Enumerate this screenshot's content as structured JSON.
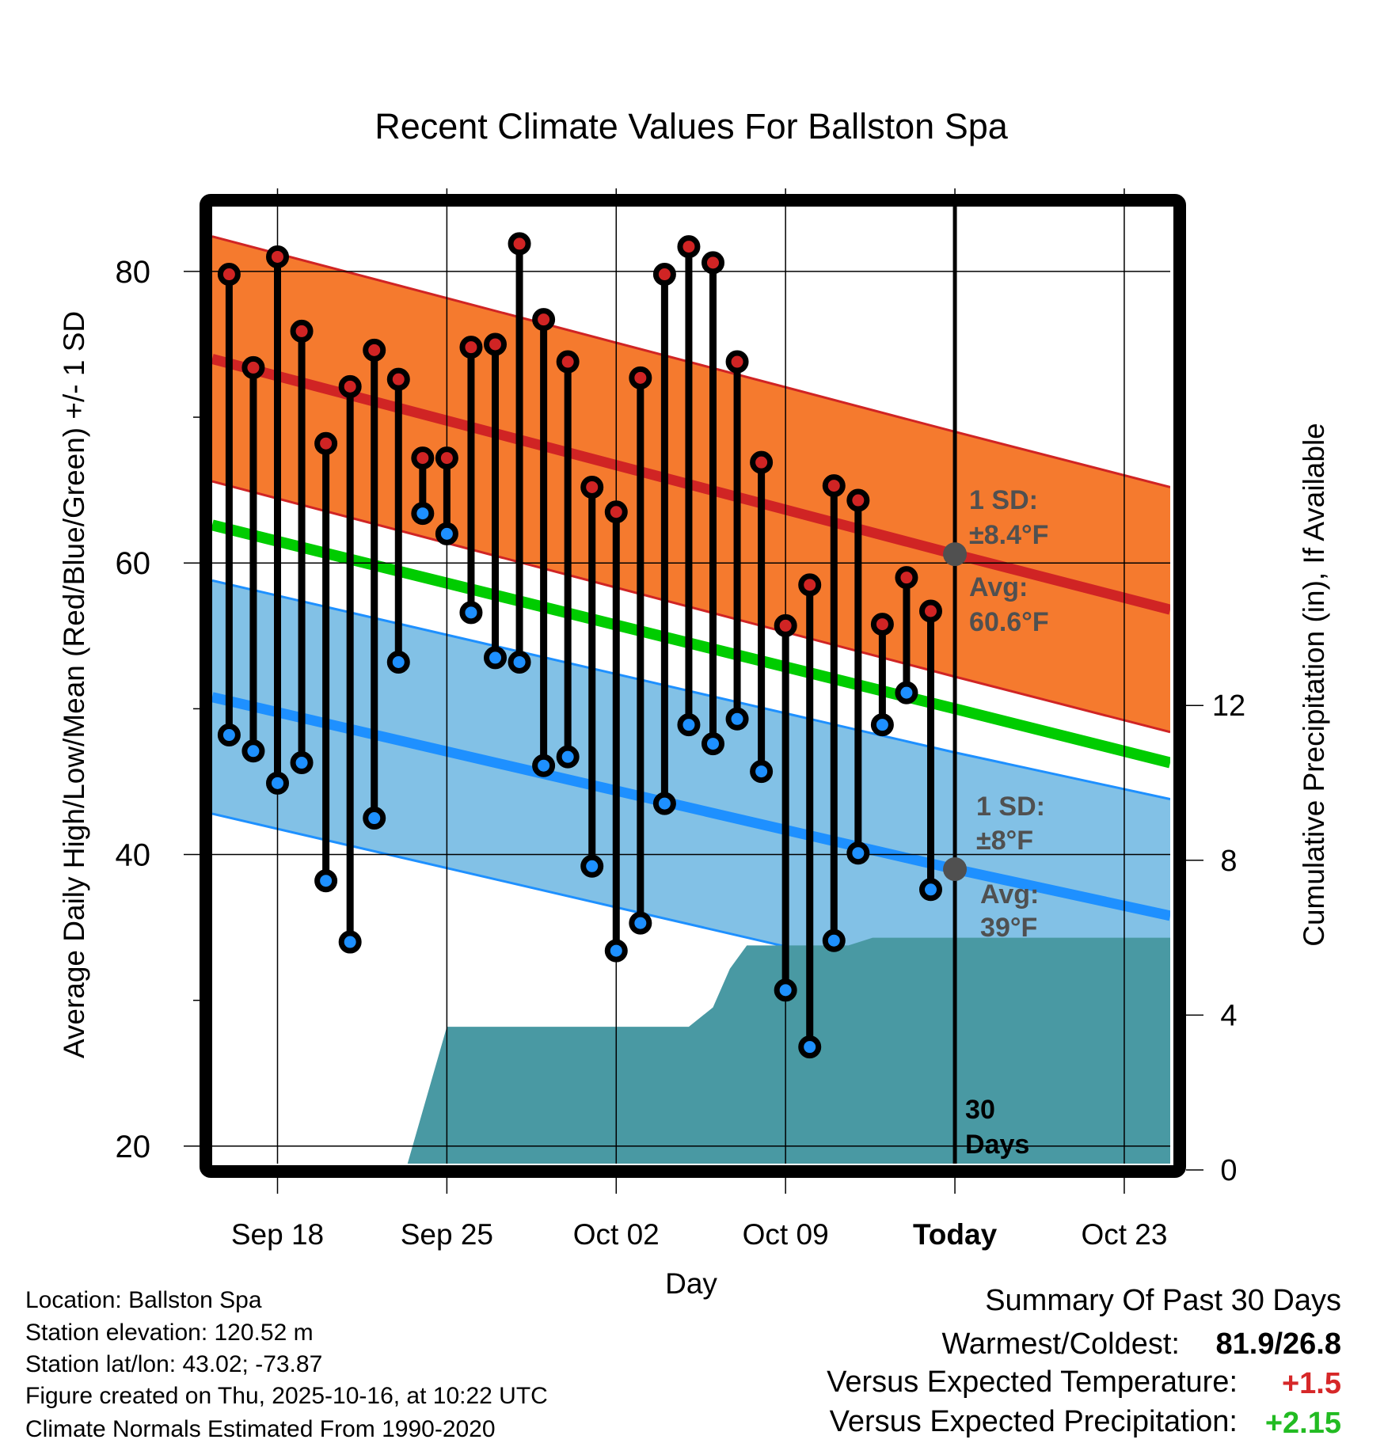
{
  "chart_data": {
    "type": "line",
    "title": "Recent Climate Values For Ballston Spa",
    "xlabel": "Day",
    "ylabel": "Average Daily High/Low/Mean (Red/Blue/Green) +/- 1 SD",
    "y2label": "Cumulative Precipitation (in), If Available",
    "ylim": [
      18.8,
      84.5
    ],
    "y2lim": [
      0,
      16
    ],
    "grid": true,
    "yticks": [
      20,
      40,
      60,
      80
    ],
    "y_minor_ticks": [
      30,
      50,
      70
    ],
    "y2ticks": [
      0,
      4,
      8,
      12
    ],
    "xticks": [
      {
        "day": 3,
        "label": "Sep 18",
        "bold": false
      },
      {
        "day": 10,
        "label": "Sep 25",
        "bold": false
      },
      {
        "day": 17,
        "label": "Oct 02",
        "bold": false
      },
      {
        "day": 24,
        "label": "Oct 09",
        "bold": false
      },
      {
        "day": 31,
        "label": "Today",
        "bold": true
      },
      {
        "day": 38,
        "label": "Oct 23",
        "bold": false
      }
    ],
    "x_range_days": [
      0.3,
      39.9
    ],
    "x_day0": "Sep 15",
    "today_day": 31,
    "today_label": [
      "30",
      "Days"
    ],
    "observed": {
      "days": [
        1,
        2,
        3,
        4,
        5,
        6,
        7,
        8,
        9,
        10,
        11,
        12,
        13,
        14,
        15,
        16,
        17,
        18,
        19,
        20,
        21,
        22,
        23,
        24,
        25,
        26,
        27,
        28,
        29,
        30
      ],
      "highs": [
        79.8,
        73.4,
        81.0,
        75.9,
        68.2,
        72.1,
        74.6,
        72.6,
        67.2,
        67.2,
        74.8,
        75.0,
        81.9,
        76.7,
        73.8,
        65.2,
        63.5,
        72.7,
        79.8,
        81.7,
        80.6,
        73.8,
        66.9,
        55.7,
        58.5,
        65.3,
        64.3,
        55.8,
        59.0,
        56.7
      ],
      "lows": [
        48.2,
        47.1,
        44.9,
        46.3,
        38.2,
        34.0,
        42.5,
        53.2,
        63.4,
        62.0,
        56.6,
        53.5,
        53.2,
        46.1,
        46.7,
        39.2,
        33.4,
        35.3,
        43.5,
        48.9,
        47.6,
        49.3,
        45.7,
        30.7,
        26.8,
        34.1,
        40.1,
        48.9,
        51.1,
        37.6
      ]
    },
    "normals": {
      "days": [
        0.3,
        31,
        39.9
      ],
      "high_mean": [
        74.0,
        60.6,
        56.8
      ],
      "high_sd": 8.4,
      "low_mean": [
        50.8,
        39.0,
        35.8
      ],
      "low_sd": 8.0,
      "mean": [
        62.6,
        50.0,
        46.3
      ]
    },
    "precipitation": {
      "days": [
        0.3,
        8.3,
        10.0,
        20.0,
        21.0,
        21.7,
        22.4,
        26.6,
        27.6,
        39.9
      ],
      "cumulative_in": [
        0,
        0,
        3.7,
        3.7,
        4.2,
        5.2,
        5.8,
        5.8,
        6.0,
        6.0
      ]
    },
    "annotations": {
      "high": {
        "sd_label": "1 SD:",
        "sd_value": "±8.4°F",
        "avg_label": "Avg:",
        "avg_value": "60.6°F",
        "avg": 60.6
      },
      "low": {
        "sd_label": "1 SD:",
        "sd_value": "±8°F",
        "avg_label": "Avg:",
        "avg_value": "39°F",
        "avg": 39.0
      }
    },
    "colors": {
      "high_band": "#f57a2e",
      "high_line": "#d02424",
      "low_band": "#82c1e6",
      "low_line": "#1e90ff",
      "mean_line": "#00cc00",
      "precip": "#4999a3",
      "annotation": "#505050"
    }
  },
  "info": {
    "location": "Location: Ballston Spa",
    "elevation": "Station elevation: 120.52 m",
    "latlon": "Station lat/lon: 43.02; -73.87",
    "created": "Figure created on Thu, 2025-10-16, at 10:22 UTC",
    "normals": "Climate Normals Estimated From 1990-2020"
  },
  "summary": {
    "title": "Summary Of Past 30 Days",
    "warm_cold_label": "Warmest/Coldest:",
    "warm_cold_value": "81.9/26.8",
    "temp_label": "Versus Expected Temperature:",
    "temp_value": "+1.5",
    "temp_color": "#d62728",
    "precip_label": "Versus Expected Precipitation:",
    "precip_value": "+2.15",
    "precip_color": "#22bb22"
  }
}
